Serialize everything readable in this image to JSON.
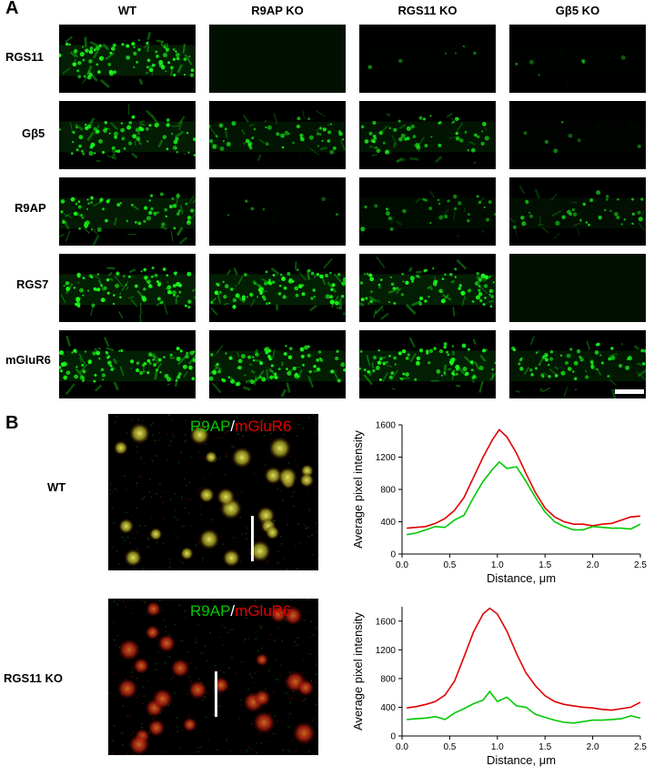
{
  "panel_a": {
    "letter": "A",
    "columns": [
      "WT",
      "R9AP KO",
      "RGS11 KO",
      "Gβ5 KO"
    ],
    "rows": [
      "RGS11",
      "Gβ5",
      "R9AP",
      "RGS7",
      "mGluR6"
    ],
    "signal_levels": [
      [
        1.0,
        0.0,
        0.08,
        0.08
      ],
      [
        0.9,
        0.65,
        0.7,
        0.1
      ],
      [
        0.85,
        0.08,
        0.4,
        0.5
      ],
      [
        1.0,
        1.0,
        1.0,
        0.0
      ],
      [
        1.0,
        0.95,
        1.0,
        0.8
      ]
    ]
  },
  "panel_b": {
    "letter": "B",
    "rows": [
      {
        "label": "WT",
        "overlay_green": "R9AP",
        "overlay_sep": "/",
        "overlay_red": "mGluR6"
      },
      {
        "label": "RGS11 KO",
        "overlay_green": "R9AP",
        "overlay_sep": "/",
        "overlay_red": "mGluR6"
      }
    ]
  },
  "colors": {
    "green": "#00c800",
    "red": "#e00000",
    "tile_green": "#1aff1a"
  },
  "chart_data": [
    {
      "type": "line",
      "xlabel": "Distance, μm",
      "ylabel": "Average pixel intensity",
      "xlim": [
        0,
        2.5
      ],
      "ylim": [
        0,
        1600
      ],
      "xticks": [
        "0.0",
        "0.5",
        "1.0",
        "1.5",
        "2.0",
        "2.5"
      ],
      "yticks": [
        "0",
        "400",
        "800",
        "1200",
        "1600"
      ],
      "x": [
        0.05,
        0.15,
        0.25,
        0.35,
        0.45,
        0.55,
        0.65,
        0.75,
        0.85,
        0.95,
        1.02,
        1.1,
        1.2,
        1.3,
        1.4,
        1.5,
        1.6,
        1.7,
        1.8,
        1.9,
        2.0,
        2.1,
        2.2,
        2.3,
        2.4,
        2.5
      ],
      "series": [
        {
          "color": "#e00000",
          "values": [
            320,
            330,
            340,
            380,
            440,
            540,
            700,
            950,
            1200,
            1420,
            1540,
            1450,
            1250,
            1000,
            760,
            570,
            460,
            400,
            370,
            370,
            350,
            370,
            380,
            420,
            460,
            470
          ]
        },
        {
          "color": "#00c800",
          "values": [
            240,
            260,
            300,
            340,
            330,
            420,
            480,
            700,
            900,
            1050,
            1140,
            1060,
            1080,
            900,
            700,
            520,
            400,
            340,
            300,
            300,
            340,
            330,
            320,
            320,
            310,
            370
          ]
        }
      ]
    },
    {
      "type": "line",
      "xlabel": "Distance, μm",
      "ylabel": "Average pixel intensity",
      "xlim": [
        0,
        2.5
      ],
      "ylim": [
        0,
        1800
      ],
      "xticks": [
        "0.0",
        "0.5",
        "1.0",
        "1.5",
        "2.0",
        "2.5"
      ],
      "yticks": [
        "0",
        "400",
        "800",
        "1200",
        "1600"
      ],
      "x": [
        0.05,
        0.15,
        0.25,
        0.35,
        0.45,
        0.55,
        0.65,
        0.75,
        0.85,
        0.92,
        1.0,
        1.1,
        1.2,
        1.3,
        1.4,
        1.5,
        1.6,
        1.7,
        1.8,
        1.9,
        2.0,
        2.1,
        2.2,
        2.3,
        2.4,
        2.5
      ],
      "series": [
        {
          "color": "#e00000",
          "values": [
            390,
            410,
            440,
            480,
            570,
            760,
            1100,
            1450,
            1700,
            1780,
            1700,
            1460,
            1150,
            880,
            700,
            560,
            480,
            440,
            420,
            400,
            390,
            370,
            360,
            380,
            400,
            470
          ]
        },
        {
          "color": "#00c800",
          "values": [
            230,
            240,
            250,
            270,
            230,
            320,
            380,
            450,
            500,
            620,
            480,
            540,
            420,
            400,
            300,
            260,
            220,
            190,
            180,
            200,
            220,
            220,
            230,
            240,
            280,
            250
          ]
        }
      ]
    }
  ]
}
